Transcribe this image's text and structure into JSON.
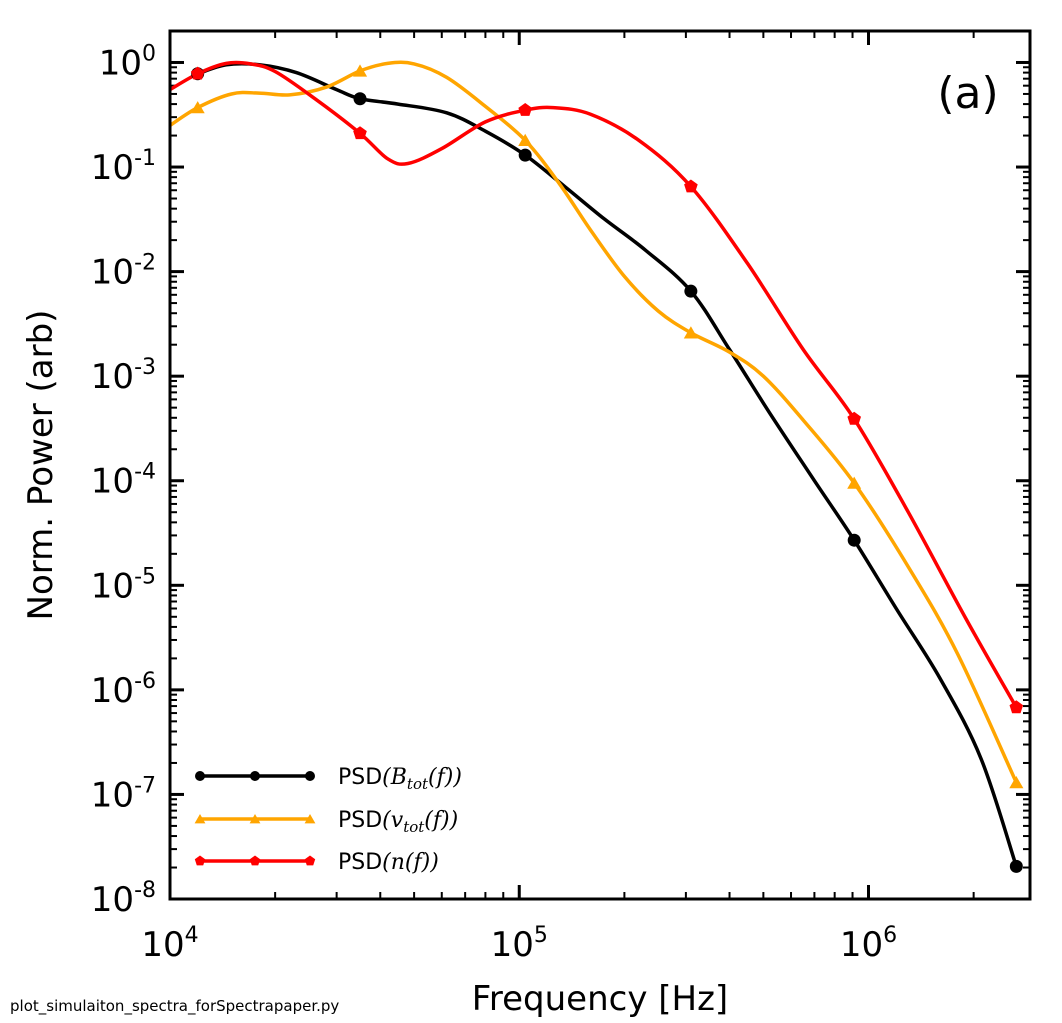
{
  "chart_data": {
    "type": "line",
    "scale": {
      "x": "log",
      "y": "log"
    },
    "xlabel": "Frequency [Hz]",
    "ylabel": "Norm. Power (arb)",
    "xlim": [
      10000,
      2900000
    ],
    "ylim": [
      1e-08,
      2
    ],
    "x_ticks": [
      {
        "value": 10000,
        "base": "10",
        "exp": "4"
      },
      {
        "value": 100000,
        "base": "10",
        "exp": "5"
      },
      {
        "value": 1000000,
        "base": "10",
        "exp": "6"
      }
    ],
    "y_ticks": [
      {
        "value": 1,
        "base": "10",
        "exp": "0"
      },
      {
        "value": 0.1,
        "base": "10",
        "exp": "-1"
      },
      {
        "value": 0.01,
        "base": "10",
        "exp": "-2"
      },
      {
        "value": 0.001,
        "base": "10",
        "exp": "-3"
      },
      {
        "value": 0.0001,
        "base": "10",
        "exp": "-4"
      },
      {
        "value": 1e-05,
        "base": "10",
        "exp": "-5"
      },
      {
        "value": 1e-06,
        "base": "10",
        "exp": "-6"
      },
      {
        "value": 1e-07,
        "base": "10",
        "exp": "-7"
      },
      {
        "value": 1e-08,
        "base": "10",
        "exp": "-8"
      }
    ],
    "annotation": "(a)",
    "legend_position": "lower-left",
    "series": [
      {
        "name": "PSD(B_tot(f))",
        "legend_prefix": "PSD",
        "legend_math": "(B",
        "legend_sub": "tot",
        "legend_math_tail": "(f))",
        "color": "#000000",
        "marker": "circle",
        "markers": [
          {
            "x": 12000,
            "y": 0.78
          },
          {
            "x": 35000,
            "y": 0.45
          },
          {
            "x": 104000,
            "y": 0.13
          },
          {
            "x": 310000,
            "y": 0.0065
          },
          {
            "x": 910000,
            "y": 2.7e-05
          },
          {
            "x": 2650000,
            "y": 2.05e-08
          }
        ],
        "curve": [
          {
            "x": 12000,
            "y": 0.78
          },
          {
            "x": 14500,
            "y": 0.95
          },
          {
            "x": 18000,
            "y": 0.95
          },
          {
            "x": 23000,
            "y": 0.8
          },
          {
            "x": 30000,
            "y": 0.55
          },
          {
            "x": 35000,
            "y": 0.45
          },
          {
            "x": 45000,
            "y": 0.4
          },
          {
            "x": 62000,
            "y": 0.33
          },
          {
            "x": 80000,
            "y": 0.22
          },
          {
            "x": 104000,
            "y": 0.13
          },
          {
            "x": 135000,
            "y": 0.065
          },
          {
            "x": 175000,
            "y": 0.032
          },
          {
            "x": 230000,
            "y": 0.016
          },
          {
            "x": 310000,
            "y": 0.0065
          },
          {
            "x": 400000,
            "y": 0.0018
          },
          {
            "x": 520000,
            "y": 0.00045
          },
          {
            "x": 700000,
            "y": 0.0001
          },
          {
            "x": 910000,
            "y": 2.7e-05
          },
          {
            "x": 1200000,
            "y": 6e-06
          },
          {
            "x": 1600000,
            "y": 1.3e-06
          },
          {
            "x": 2100000,
            "y": 2.2e-07
          },
          {
            "x": 2650000,
            "y": 2.05e-08
          }
        ]
      },
      {
        "name": "PSD(v_tot(f))",
        "legend_prefix": "PSD",
        "legend_math": "(v",
        "legend_sub": "tot",
        "legend_math_tail": "(f))",
        "color": "#FFA500",
        "marker": "triangle",
        "markers": [
          {
            "x": 12000,
            "y": 0.37
          },
          {
            "x": 35000,
            "y": 0.83
          },
          {
            "x": 104000,
            "y": 0.18
          },
          {
            "x": 310000,
            "y": 0.0026
          },
          {
            "x": 910000,
            "y": 9.5e-05
          },
          {
            "x": 2650000,
            "y": 1.3e-07
          }
        ],
        "curve": [
          {
            "x": 10000,
            "y": 0.25
          },
          {
            "x": 12000,
            "y": 0.37
          },
          {
            "x": 15000,
            "y": 0.5
          },
          {
            "x": 18000,
            "y": 0.51
          },
          {
            "x": 22000,
            "y": 0.49
          },
          {
            "x": 28000,
            "y": 0.58
          },
          {
            "x": 35000,
            "y": 0.83
          },
          {
            "x": 42000,
            "y": 0.98
          },
          {
            "x": 50000,
            "y": 0.97
          },
          {
            "x": 62000,
            "y": 0.72
          },
          {
            "x": 80000,
            "y": 0.38
          },
          {
            "x": 104000,
            "y": 0.18
          },
          {
            "x": 130000,
            "y": 0.07
          },
          {
            "x": 160000,
            "y": 0.025
          },
          {
            "x": 200000,
            "y": 0.009
          },
          {
            "x": 250000,
            "y": 0.0042
          },
          {
            "x": 310000,
            "y": 0.0026
          },
          {
            "x": 400000,
            "y": 0.0017
          },
          {
            "x": 500000,
            "y": 0.001
          },
          {
            "x": 650000,
            "y": 0.00038
          },
          {
            "x": 910000,
            "y": 9.5e-05
          },
          {
            "x": 1300000,
            "y": 1.5e-05
          },
          {
            "x": 1800000,
            "y": 2.2e-06
          },
          {
            "x": 2650000,
            "y": 1.3e-07
          }
        ]
      },
      {
        "name": "PSD(n(f))",
        "legend_prefix": "PSD",
        "legend_math": "(n(f))",
        "legend_sub": "",
        "legend_math_tail": "",
        "color": "#FF0000",
        "marker": "pentagon",
        "markers": [
          {
            "x": 12000,
            "y": 0.78
          },
          {
            "x": 35000,
            "y": 0.21
          },
          {
            "x": 104000,
            "y": 0.35
          },
          {
            "x": 310000,
            "y": 0.065
          },
          {
            "x": 910000,
            "y": 0.00039
          },
          {
            "x": 2650000,
            "y": 6.8e-07
          }
        ],
        "curve": [
          {
            "x": 10000,
            "y": 0.55
          },
          {
            "x": 12000,
            "y": 0.78
          },
          {
            "x": 14500,
            "y": 0.98
          },
          {
            "x": 17000,
            "y": 0.97
          },
          {
            "x": 20000,
            "y": 0.82
          },
          {
            "x": 26000,
            "y": 0.45
          },
          {
            "x": 35000,
            "y": 0.21
          },
          {
            "x": 42000,
            "y": 0.12
          },
          {
            "x": 48000,
            "y": 0.108
          },
          {
            "x": 60000,
            "y": 0.15
          },
          {
            "x": 80000,
            "y": 0.27
          },
          {
            "x": 104000,
            "y": 0.35
          },
          {
            "x": 125000,
            "y": 0.37
          },
          {
            "x": 160000,
            "y": 0.32
          },
          {
            "x": 220000,
            "y": 0.18
          },
          {
            "x": 310000,
            "y": 0.065
          },
          {
            "x": 450000,
            "y": 0.012
          },
          {
            "x": 650000,
            "y": 0.0018
          },
          {
            "x": 910000,
            "y": 0.00039
          },
          {
            "x": 1300000,
            "y": 5e-05
          },
          {
            "x": 1900000,
            "y": 4.8e-06
          },
          {
            "x": 2650000,
            "y": 6.8e-07
          }
        ]
      }
    ]
  },
  "footer": {
    "script_name": "plot_simulaiton_spectra_forSpectrapaper.py"
  }
}
